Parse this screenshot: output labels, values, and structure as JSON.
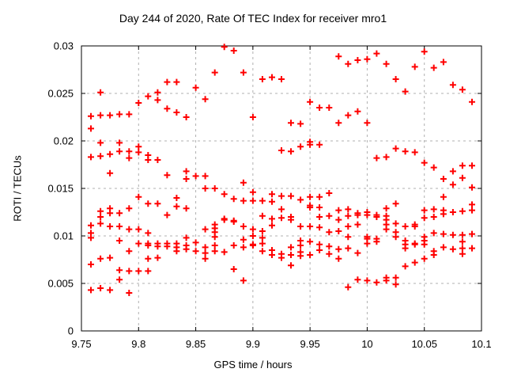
{
  "chart_data": {
    "type": "scatter",
    "title": "Day 244 of 2020, Rate Of TEC Index for receiver mro1",
    "xlabel": "GPS time / hours",
    "ylabel": "ROTI / TECUs",
    "xlim": [
      9.75,
      10.1
    ],
    "ylim": [
      0,
      0.03
    ],
    "x_tick_values": [
      9.75,
      9.8,
      9.85,
      9.9,
      9.95,
      10,
      10.05,
      10.1
    ],
    "x_tick_labels": [
      "9.75",
      "9.8",
      "9.85",
      "9.9",
      "9.95",
      "10",
      "10.05",
      "10.1"
    ],
    "y_tick_values": [
      0,
      0.005,
      0.01,
      0.015,
      0.02,
      0.025,
      0.03
    ],
    "y_tick_labels": [
      "0",
      "0.005",
      "0.01",
      "0.015",
      "0.02",
      "0.025",
      "0.03"
    ],
    "grid": "dashed",
    "legend": "none",
    "marker": "plus",
    "colors": {
      "marker": "#ff0000",
      "axis": "#000000",
      "grid": "#b0b0b0",
      "background": "#ffffff"
    },
    "series": [
      {
        "name": "ROTI",
        "epochs": [
          {
            "t": 9.7583,
            "values": [
              0.0226,
              0.0213,
              0.0183,
              0.0111,
              0.0103,
              0.0098,
              0.007,
              0.0043
            ]
          },
          {
            "t": 9.7667,
            "values": [
              0.0251,
              0.0227,
              0.0198,
              0.0184,
              0.0126,
              0.012,
              0.0113,
              0.0076,
              0.0045
            ]
          },
          {
            "t": 9.775,
            "values": [
              0.0227,
              0.0186,
              0.0166,
              0.0129,
              0.0124,
              0.011,
              0.0077,
              0.0043
            ]
          },
          {
            "t": 9.7833,
            "values": [
              0.0228,
              0.0198,
              0.0189,
              0.0124,
              0.011,
              0.0095,
              0.0064,
              0.0054
            ]
          },
          {
            "t": 9.7917,
            "values": [
              0.0228,
              0.0189,
              0.0182,
              0.0129,
              0.0107,
              0.0084,
              0.0063,
              0.004
            ]
          },
          {
            "t": 9.8,
            "values": [
              0.024,
              0.0194,
              0.0188,
              0.0141,
              0.0107,
              0.0092,
              0.0063
            ]
          },
          {
            "t": 9.8083,
            "values": [
              0.0247,
              0.0185,
              0.018,
              0.0134,
              0.0103,
              0.0092,
              0.009,
              0.0076,
              0.0063
            ]
          },
          {
            "t": 9.8167,
            "values": [
              0.0251,
              0.0243,
              0.018,
              0.0134,
              0.0092,
              0.0089,
              0.0077
            ]
          },
          {
            "t": 9.825,
            "values": [
              0.0262,
              0.0234,
              0.0164,
              0.0122,
              0.0092,
              0.0089
            ]
          },
          {
            "t": 9.8333,
            "values": [
              0.0262,
              0.023,
              0.014,
              0.0131,
              0.0092,
              0.0088,
              0.0084
            ]
          },
          {
            "t": 9.8417,
            "values": [
              0.0225,
              0.0168,
              0.016,
              0.0129,
              0.0098,
              0.009,
              0.0086
            ]
          },
          {
            "t": 9.85,
            "values": [
              0.0256,
              0.0163,
              0.0093,
              0.0084
            ]
          },
          {
            "t": 9.8583,
            "values": [
              0.0244,
              0.0163,
              0.015,
              0.0107,
              0.0088,
              0.0082,
              0.0076
            ]
          },
          {
            "t": 9.8667,
            "values": [
              0.0272,
              0.015,
              0.0112,
              0.0108,
              0.0104,
              0.0099,
              0.009,
              0.0084
            ]
          },
          {
            "t": 9.875,
            "values": [
              0.0299,
              0.0144,
              0.0118,
              0.0117,
              0.0083
            ]
          },
          {
            "t": 9.8833,
            "values": [
              0.0295,
              0.0139,
              0.0116,
              0.0115,
              0.009,
              0.0065
            ]
          },
          {
            "t": 9.8917,
            "values": [
              0.0272,
              0.0156,
              0.0137,
              0.011,
              0.0096,
              0.0088,
              0.0053
            ]
          },
          {
            "t": 9.9,
            "values": [
              0.0225,
              0.0146,
              0.0137,
              0.0107,
              0.01,
              0.0091,
              0.009
            ]
          },
          {
            "t": 9.9083,
            "values": [
              0.0265,
              0.0137,
              0.0121,
              0.0105,
              0.0098,
              0.0092,
              0.0084
            ]
          },
          {
            "t": 9.9167,
            "values": [
              0.0267,
              0.0144,
              0.0136,
              0.0118,
              0.0111,
              0.0085,
              0.008
            ]
          },
          {
            "t": 9.925,
            "values": [
              0.0265,
              0.019,
              0.0142,
              0.0128,
              0.0119,
              0.0081,
              0.0077
            ]
          },
          {
            "t": 9.9333,
            "values": [
              0.0219,
              0.0189,
              0.0142,
              0.012,
              0.0117,
              0.0088,
              0.008,
              0.0069
            ]
          },
          {
            "t": 9.9417,
            "values": [
              0.0218,
              0.0194,
              0.0138,
              0.011,
              0.0095,
              0.009,
              0.0083,
              0.0079
            ]
          },
          {
            "t": 9.95,
            "values": [
              0.0241,
              0.0199,
              0.0196,
              0.0141,
              0.0132,
              0.013,
              0.011,
              0.0094,
              0.008
            ]
          },
          {
            "t": 9.9583,
            "values": [
              0.0235,
              0.0196,
              0.0141,
              0.013,
              0.012,
              0.0109,
              0.0091,
              0.0085
            ]
          },
          {
            "t": 9.9667,
            "values": [
              0.0235,
              0.0145,
              0.0121,
              0.0104,
              0.0089,
              0.0081
            ]
          },
          {
            "t": 9.975,
            "values": [
              0.0289,
              0.0219,
              0.0127,
              0.0117,
              0.0105,
              0.0086,
              0.0076
            ]
          },
          {
            "t": 9.9833,
            "values": [
              0.0281,
              0.0227,
              0.0128,
              0.0121,
              0.011,
              0.0099,
              0.0087,
              0.0046
            ]
          },
          {
            "t": 9.9917,
            "values": [
              0.0285,
              0.0231,
              0.0124,
              0.0122,
              0.0112,
              0.0082,
              0.0054
            ]
          },
          {
            "t": 10.0,
            "values": [
              0.0286,
              0.0219,
              0.0125,
              0.0122,
              0.0099,
              0.0097,
              0.0092,
              0.0053
            ]
          },
          {
            "t": 10.0083,
            "values": [
              0.0292,
              0.0182,
              0.0122,
              0.012,
              0.0097,
              0.0094,
              0.0051
            ]
          },
          {
            "t": 10.0167,
            "values": [
              0.0281,
              0.0183,
              0.0129,
              0.0121,
              0.0117,
              0.0112,
              0.0107,
              0.0056,
              0.0053
            ]
          },
          {
            "t": 10.025,
            "values": [
              0.0265,
              0.0192,
              0.0134,
              0.0113,
              0.0104,
              0.0099,
              0.0056,
              0.0049
            ]
          },
          {
            "t": 10.0333,
            "values": [
              0.0252,
              0.0189,
              0.011,
              0.0095,
              0.0091,
              0.0087,
              0.0068
            ]
          },
          {
            "t": 10.0417,
            "values": [
              0.0278,
              0.0188,
              0.0112,
              0.011,
              0.0092,
              0.0091,
              0.0072
            ]
          },
          {
            "t": 10.05,
            "values": [
              0.0294,
              0.0177,
              0.0127,
              0.0119,
              0.0099,
              0.0095,
              0.0091,
              0.0076
            ]
          },
          {
            "t": 10.0583,
            "values": [
              0.0277,
              0.0172,
              0.0128,
              0.012,
              0.0103,
              0.0084,
              0.008
            ]
          },
          {
            "t": 10.0667,
            "values": [
              0.0283,
              0.016,
              0.0141,
              0.0127,
              0.0123,
              0.0102,
              0.0088
            ]
          },
          {
            "t": 10.075,
            "values": [
              0.0259,
              0.0168,
              0.0154,
              0.0125,
              0.0101,
              0.0086
            ]
          },
          {
            "t": 10.0833,
            "values": [
              0.0254,
              0.0174,
              0.0161,
              0.0126,
              0.0101,
              0.0094,
              0.0087,
              0.0081
            ]
          },
          {
            "t": 10.0917,
            "values": [
              0.0241,
              0.0174,
              0.0151,
              0.0133,
              0.0127,
              0.0102,
              0.0087
            ]
          }
        ]
      }
    ]
  }
}
